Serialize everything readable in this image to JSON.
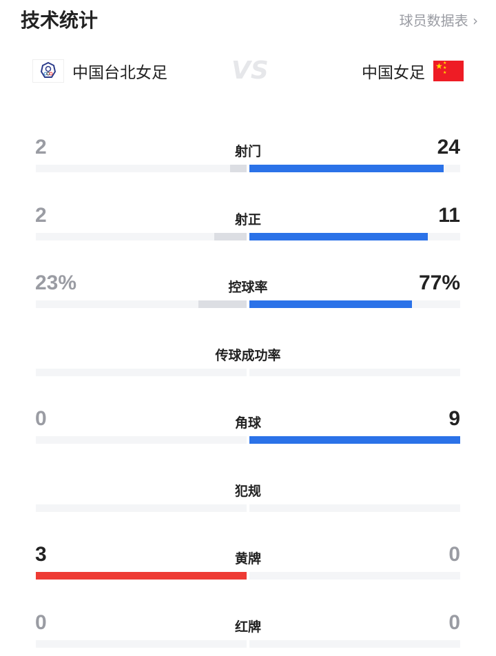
{
  "header": {
    "title": "技术统计",
    "player_stats_link": "球员数据表 ›"
  },
  "teams": {
    "home": {
      "name": "中国台北女足",
      "logo": "chinese-taipei-emblem"
    },
    "away": {
      "name": "中国女足",
      "logo": "china-flag"
    },
    "vs": "VS"
  },
  "colors": {
    "away_lead": "#2b72e8",
    "home_lead": "#ee3b34",
    "trailing": "#dcdee3",
    "track": "#f4f5f7"
  },
  "stats": [
    {
      "label": "射门",
      "home": "2",
      "away": "24",
      "home_share": 0.077,
      "away_share": 0.923,
      "home_color": "#dcdee3",
      "away_color": "#2b72e8"
    },
    {
      "label": "射正",
      "home": "2",
      "away": "11",
      "home_share": 0.154,
      "away_share": 0.846,
      "home_color": "#dcdee3",
      "away_color": "#2b72e8"
    },
    {
      "label": "控球率",
      "home": "23%",
      "away": "77%",
      "home_share": 0.23,
      "away_share": 0.77,
      "home_color": "#dcdee3",
      "away_color": "#2b72e8"
    },
    {
      "label": "传球成功率",
      "home": "",
      "away": "",
      "home_share": 0,
      "away_share": 0,
      "home_color": "#dcdee3",
      "away_color": "#dcdee3"
    },
    {
      "label": "角球",
      "home": "0",
      "away": "9",
      "home_share": 0,
      "away_share": 1,
      "home_color": "#dcdee3",
      "away_color": "#2b72e8"
    },
    {
      "label": "犯规",
      "home": "",
      "away": "",
      "home_share": 0,
      "away_share": 0,
      "home_color": "#dcdee3",
      "away_color": "#dcdee3"
    },
    {
      "label": "黄牌",
      "home": "3",
      "away": "0",
      "home_share": 1,
      "away_share": 0,
      "home_color": "#ee3b34",
      "away_color": "#dcdee3"
    },
    {
      "label": "红牌",
      "home": "0",
      "away": "0",
      "home_share": 0,
      "away_share": 0,
      "home_color": "#dcdee3",
      "away_color": "#dcdee3"
    }
  ]
}
